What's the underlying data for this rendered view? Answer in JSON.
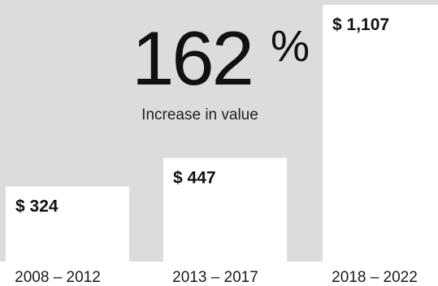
{
  "headline": {
    "value": "162",
    "unit": "%",
    "subtitle": "Increase in value"
  },
  "chart_data": {
    "type": "bar",
    "categories": [
      "2008 – 2012",
      "2013 – 2017",
      "2018 – 2022"
    ],
    "values": [
      324,
      447,
      1107
    ],
    "value_labels": [
      "$ 324",
      "$ 447",
      "$ 1,107"
    ],
    "title": "",
    "xlabel": "",
    "ylabel": "",
    "ylim": [
      0,
      1107
    ],
    "grid": false,
    "legend": "none",
    "colors": {
      "background": "#dcdcdc",
      "bar": "#ffffff",
      "text": "#111111"
    }
  }
}
